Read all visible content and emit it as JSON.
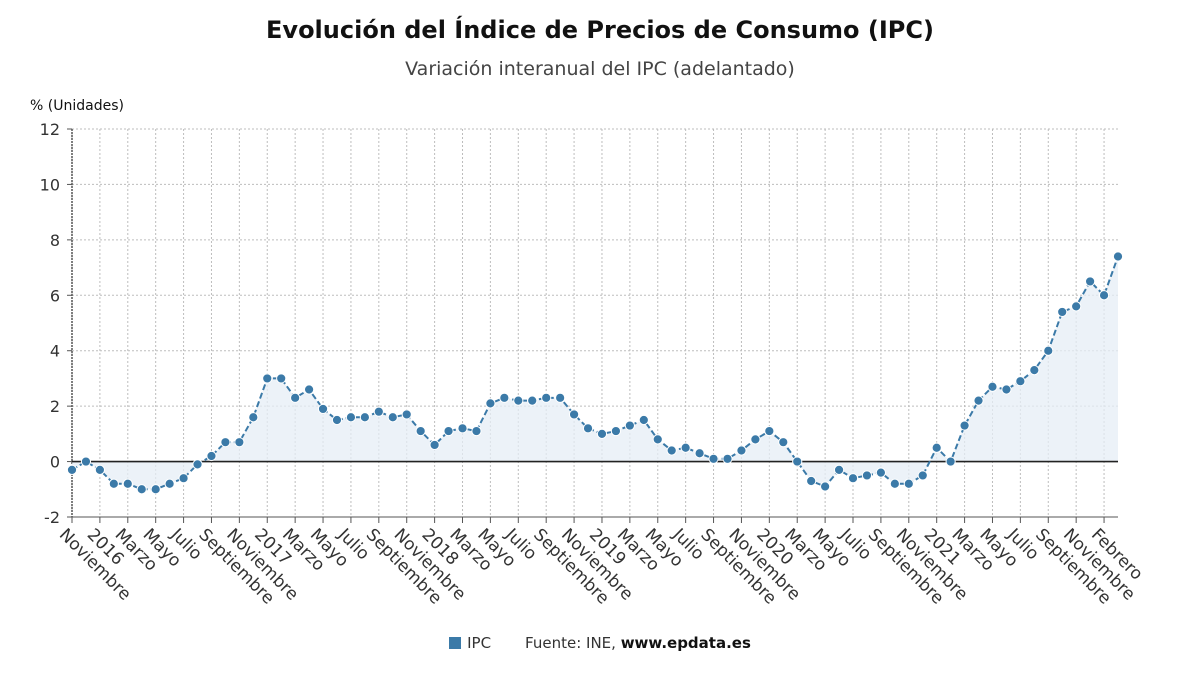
{
  "chart_data": {
    "type": "line",
    "title": "Evolución del Índice de Precios de Consumo (IPC)",
    "subtitle": "Variación interanual del IPC (adelantado)",
    "ylabel": "% (Unidades)",
    "ylim": [
      -2,
      12
    ],
    "yticks": [
      -2,
      0,
      2,
      4,
      6,
      8,
      10,
      12
    ],
    "area_fill": true,
    "grid": true,
    "zero_line": true,
    "x_tick_labels": [
      "Noviembre",
      "2016",
      "Marzo",
      "Mayo",
      "Julio",
      "Septiembre",
      "Noviembre",
      "2017",
      "Marzo",
      "Mayo",
      "Julio",
      "Septiembre",
      "Noviembre",
      "2018",
      "Marzo",
      "Mayo",
      "Julio",
      "Septiembre",
      "Noviembre",
      "2019",
      "Marzo",
      "Mayo",
      "Julio",
      "Septiembre",
      "Noviembre",
      "2020",
      "Marzo",
      "Mayo",
      "Julio",
      "Septiembre",
      "Noviembre",
      "2021",
      "Marzo",
      "Mayo",
      "Julio",
      "Septiembre",
      "Noviembre",
      "Febrero"
    ],
    "series": [
      {
        "name": "IPC",
        "color": "#3b7aa8",
        "x_start": "2015-11",
        "x_end": "2022-02",
        "values": [
          -0.3,
          0.0,
          -0.3,
          -0.8,
          -0.8,
          -1.0,
          -1.0,
          -0.8,
          -0.6,
          -0.1,
          0.2,
          0.7,
          0.7,
          1.6,
          3.0,
          3.0,
          2.3,
          2.6,
          1.9,
          1.5,
          1.6,
          1.6,
          1.8,
          1.6,
          1.7,
          1.1,
          0.6,
          1.1,
          1.2,
          1.1,
          2.1,
          2.3,
          2.2,
          2.2,
          2.3,
          2.3,
          1.7,
          1.2,
          1.0,
          1.1,
          1.3,
          1.5,
          0.8,
          0.4,
          0.5,
          0.3,
          0.1,
          0.1,
          0.4,
          0.8,
          1.1,
          0.7,
          0.0,
          -0.7,
          -0.9,
          -0.3,
          -0.6,
          -0.5,
          -0.4,
          -0.8,
          -0.8,
          -0.5,
          0.5,
          0.0,
          1.3,
          2.2,
          2.7,
          2.6,
          2.9,
          3.3,
          4.0,
          5.4,
          5.6,
          6.5,
          6.0,
          7.4
        ]
      }
    ]
  },
  "legend": {
    "series_label": "IPC",
    "source_label": "Fuente: INE,",
    "source_site": "www.epdata.es"
  }
}
